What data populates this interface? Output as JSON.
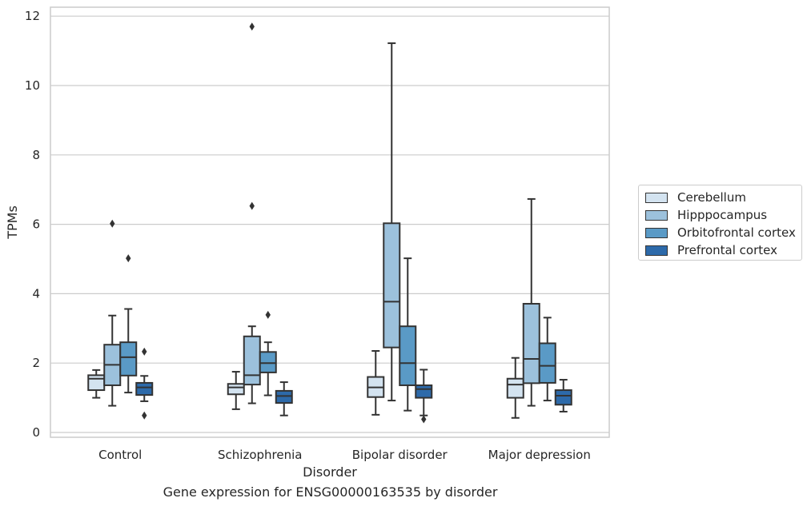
{
  "caption": "Gene expression for ENSG00000163535 by disorder",
  "chart_data": {
    "type": "boxplot",
    "xlabel": "Disorder",
    "ylabel": "TPMs",
    "categories": [
      "Control",
      "Schizophrenia",
      "Bipolar disorder",
      "Major depression"
    ],
    "ylim": [
      -0.15,
      12.25
    ],
    "yticks": [
      0,
      2,
      4,
      6,
      8,
      10,
      12
    ],
    "grid": "horizontal",
    "legend_position": "right",
    "series": [
      {
        "name": "Cerebellum",
        "color": "#d3e3f0",
        "boxes": [
          {
            "whislo": 1.0,
            "q1": 1.22,
            "med": 1.55,
            "q3": 1.65,
            "whishi": 1.8,
            "fliers": []
          },
          {
            "whislo": 0.67,
            "q1": 1.1,
            "med": 1.3,
            "q3": 1.4,
            "whishi": 1.75,
            "fliers": []
          },
          {
            "whislo": 0.51,
            "q1": 1.02,
            "med": 1.3,
            "q3": 1.6,
            "whishi": 2.35,
            "fliers": []
          },
          {
            "whislo": 0.42,
            "q1": 1.0,
            "med": 1.38,
            "q3": 1.55,
            "whishi": 2.15,
            "fliers": []
          }
        ]
      },
      {
        "name": "Hipppocampus",
        "color": "#9cc1dc",
        "boxes": [
          {
            "whislo": 0.77,
            "q1": 1.36,
            "med": 1.95,
            "q3": 2.53,
            "whishi": 3.37,
            "fliers": [
              6.02
            ]
          },
          {
            "whislo": 0.84,
            "q1": 1.38,
            "med": 1.65,
            "q3": 2.77,
            "whishi": 3.06,
            "fliers": [
              11.7,
              6.53
            ]
          },
          {
            "whislo": 0.92,
            "q1": 2.45,
            "med": 3.77,
            "q3": 6.03,
            "whishi": 11.22,
            "fliers": []
          },
          {
            "whislo": 0.77,
            "q1": 1.42,
            "med": 2.12,
            "q3": 3.71,
            "whishi": 6.73,
            "fliers": []
          }
        ]
      },
      {
        "name": "Orbitofrontal cortex",
        "color": "#5a9ac6",
        "boxes": [
          {
            "whislo": 1.15,
            "q1": 1.64,
            "med": 2.17,
            "q3": 2.6,
            "whishi": 3.56,
            "fliers": [
              5.02
            ]
          },
          {
            "whislo": 1.07,
            "q1": 1.73,
            "med": 2.0,
            "q3": 2.32,
            "whishi": 2.6,
            "fliers": [
              3.39
            ]
          },
          {
            "whislo": 0.63,
            "q1": 1.36,
            "med": 2.0,
            "q3": 3.06,
            "whishi": 5.02,
            "fliers": []
          },
          {
            "whislo": 0.92,
            "q1": 1.43,
            "med": 1.92,
            "q3": 2.57,
            "whishi": 3.31,
            "fliers": []
          }
        ]
      },
      {
        "name": "Prefrontal cortex",
        "color": "#2d6aaa",
        "boxes": [
          {
            "whislo": 0.9,
            "q1": 1.08,
            "med": 1.3,
            "q3": 1.43,
            "whishi": 1.63,
            "fliers": [
              2.33,
              0.49
            ]
          },
          {
            "whislo": 0.49,
            "q1": 0.85,
            "med": 1.05,
            "q3": 1.2,
            "whishi": 1.45,
            "fliers": []
          },
          {
            "whislo": 0.49,
            "q1": 1.0,
            "med": 1.25,
            "q3": 1.36,
            "whishi": 1.81,
            "fliers": [
              0.38
            ]
          },
          {
            "whislo": 0.6,
            "q1": 0.8,
            "med": 1.06,
            "q3": 1.22,
            "whishi": 1.52,
            "fliers": []
          }
        ]
      }
    ]
  }
}
